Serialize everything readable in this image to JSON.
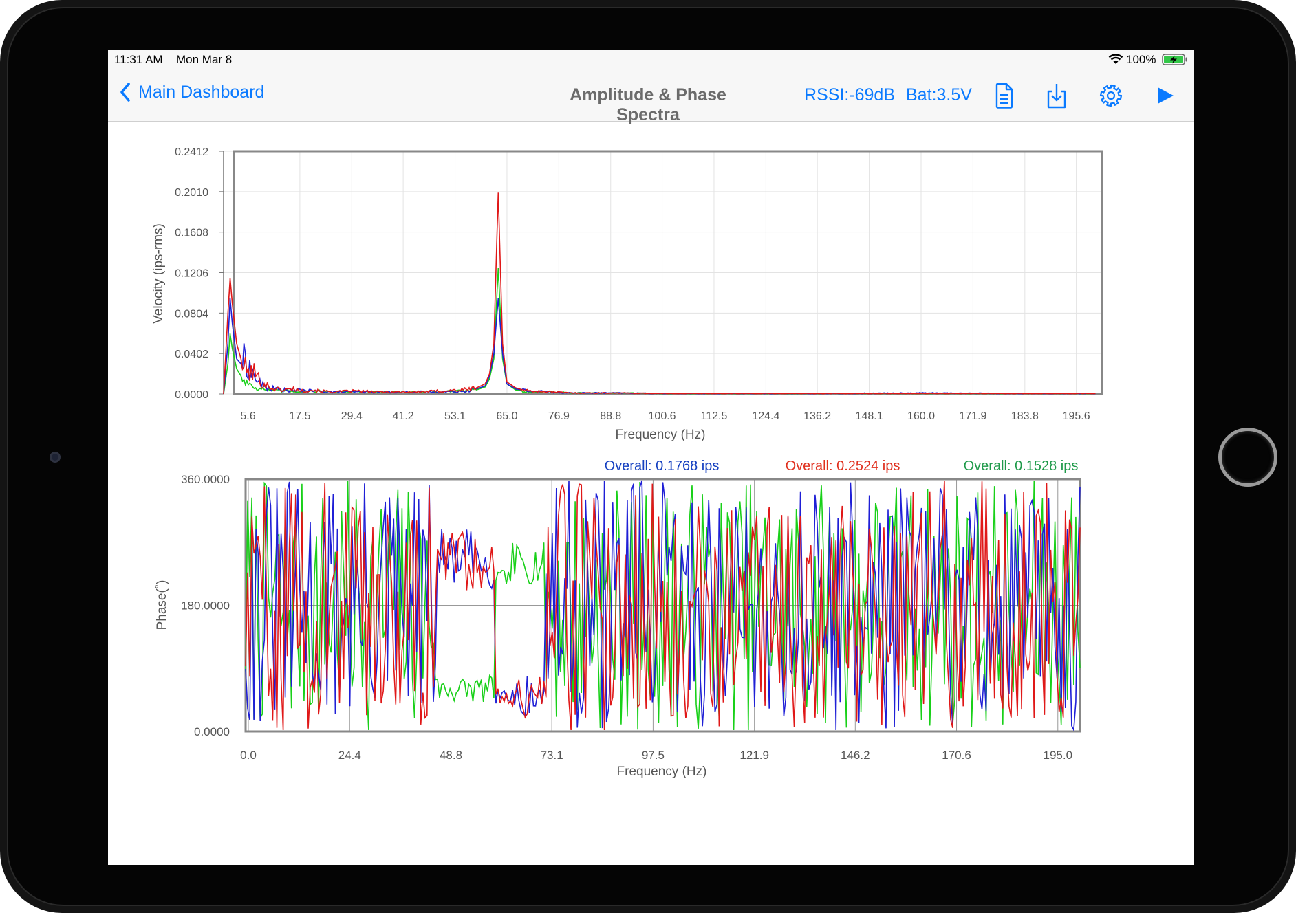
{
  "status_bar": {
    "time": "11:31 AM",
    "date": "Mon Mar 8",
    "battery_percent": "100%",
    "wifi_icon": "wifi-icon",
    "battery_icon": "battery-charging-icon"
  },
  "nav_bar": {
    "back_label": "Main Dashboard",
    "title": "Amplitude & Phase Spectra",
    "rssi": "RSSI:-69dB",
    "battery": "Bat:3.5V",
    "icons": [
      "document-icon",
      "download-icon",
      "gear-icon",
      "play-icon"
    ],
    "accent_color": "#0a7aff"
  },
  "overall": {
    "blue": "Overall: 0.1768 ips",
    "red": "Overall: 0.2524 ips",
    "green": "Overall: 0.1528 ips"
  },
  "colors": {
    "blue": "#1f1fd6",
    "red": "#e01818",
    "green": "#19d019",
    "overall_blue": "#1540c0",
    "overall_red": "#e0301e",
    "overall_green": "#1f9a4a"
  },
  "chart_data": [
    {
      "type": "line",
      "ylabel": "Velocity (ips-rms)",
      "xlabel": "Frequency (Hz)",
      "ylim": [
        0,
        0.2412
      ],
      "xlim": [
        0,
        201.5
      ],
      "yticks": [
        "0.0000",
        "0.0402",
        "0.0804",
        "0.1206",
        "0.1608",
        "0.2010",
        "0.2412"
      ],
      "xticks": [
        "5.6",
        "17.5",
        "29.4",
        "41.2",
        "53.1",
        "65.0",
        "76.9",
        "88.8",
        "100.6",
        "112.5",
        "124.4",
        "136.2",
        "148.1",
        "160.0",
        "171.9",
        "183.8",
        "195.6"
      ],
      "grid": true,
      "series": [
        {
          "color": "red",
          "x": [
            0,
            1,
            1.5,
            2,
            3,
            4,
            5,
            6,
            7,
            8,
            9,
            10,
            11,
            12,
            14,
            16,
            18,
            20,
            25,
            30,
            35,
            40,
            45,
            50,
            55,
            58,
            60,
            61,
            62,
            63,
            64,
            65,
            67,
            70,
            75,
            80,
            90,
            100,
            120,
            140,
            160,
            180,
            200
          ],
          "y": [
            0.0,
            0.08,
            0.115,
            0.09,
            0.05,
            0.035,
            0.025,
            0.02,
            0.022,
            0.015,
            0.01,
            0.008,
            0.006,
            0.005,
            0.004,
            0.005,
            0.003,
            0.004,
            0.002,
            0.003,
            0.002,
            0.002,
            0.002,
            0.003,
            0.004,
            0.006,
            0.01,
            0.02,
            0.05,
            0.2,
            0.05,
            0.012,
            0.006,
            0.003,
            0.002,
            0.001,
            0.001,
            0.0005,
            0.0005,
            0.0005,
            0.0005,
            0.0005,
            0.0005
          ]
        },
        {
          "color": "blue",
          "x": [
            0,
            1,
            1.5,
            2,
            3,
            4,
            5,
            6,
            7,
            8,
            9,
            10,
            12,
            14,
            16,
            18,
            20,
            25,
            30,
            35,
            40,
            45,
            50,
            55,
            58,
            60,
            61,
            62,
            63,
            64,
            65,
            67,
            70,
            75,
            80,
            90,
            100,
            120,
            140,
            160,
            180,
            200
          ],
          "y": [
            0.0,
            0.05,
            0.095,
            0.07,
            0.035,
            0.03,
            0.036,
            0.025,
            0.018,
            0.012,
            0.008,
            0.006,
            0.005,
            0.004,
            0.003,
            0.004,
            0.003,
            0.002,
            0.002,
            0.002,
            0.002,
            0.002,
            0.002,
            0.003,
            0.005,
            0.008,
            0.018,
            0.04,
            0.095,
            0.04,
            0.01,
            0.005,
            0.003,
            0.002,
            0.001,
            0.001,
            0.0005,
            0.0005,
            0.0005,
            0.001,
            0.0005,
            0.0005
          ]
        },
        {
          "color": "green",
          "x": [
            0,
            1,
            1.5,
            2,
            3,
            4,
            5,
            6,
            7,
            8,
            9,
            10,
            12,
            14,
            16,
            18,
            20,
            25,
            30,
            35,
            40,
            45,
            50,
            55,
            58,
            60,
            61,
            62,
            63,
            64,
            65,
            67,
            70,
            75,
            80,
            90,
            100,
            120,
            140,
            160,
            180,
            200
          ],
          "y": [
            0.0,
            0.03,
            0.06,
            0.045,
            0.025,
            0.018,
            0.012,
            0.01,
            0.008,
            0.006,
            0.005,
            0.004,
            0.003,
            0.003,
            0.003,
            0.002,
            0.003,
            0.002,
            0.002,
            0.002,
            0.002,
            0.002,
            0.002,
            0.003,
            0.004,
            0.007,
            0.015,
            0.035,
            0.125,
            0.035,
            0.01,
            0.004,
            0.002,
            0.002,
            0.001,
            0.001,
            0.0005,
            0.0005,
            0.0005,
            0.0005,
            0.0005,
            0.0005
          ]
        }
      ]
    },
    {
      "type": "line",
      "ylabel": "Phase(˚)",
      "xlabel": "Frequency (Hz)",
      "ylim": [
        0,
        360
      ],
      "xlim": [
        0,
        201
      ],
      "yticks": [
        "0.0000",
        "180.0000",
        "360.0000"
      ],
      "xticks": [
        "0.0",
        "24.4",
        "48.8",
        "73.1",
        "97.5",
        "121.9",
        "146.2",
        "170.6",
        "195.0"
      ],
      "grid": true,
      "series": [
        {
          "color": "blue",
          "name": "Overall: 0.1768 ips"
        },
        {
          "color": "red",
          "name": "Overall: 0.2524 ips"
        },
        {
          "color": "green",
          "name": "Overall: 0.1528 ips"
        }
      ]
    }
  ]
}
